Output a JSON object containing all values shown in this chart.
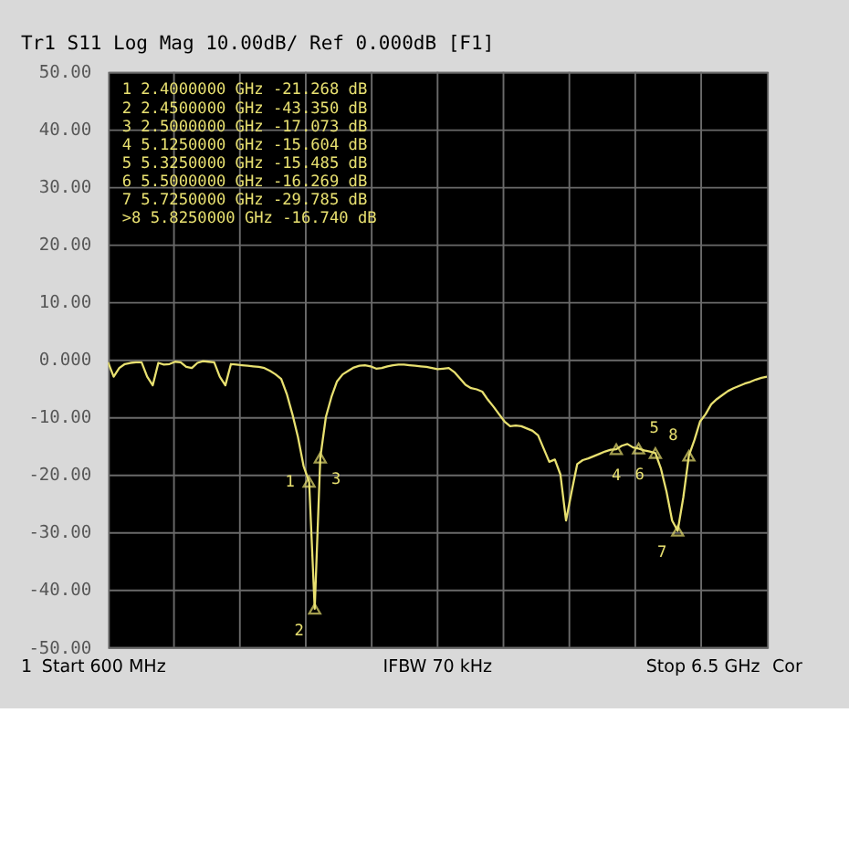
{
  "chart_data": {
    "type": "line",
    "title": "Tr1  S11 Log Mag 10.00dB/ Ref 0.000dB [F1]",
    "categories": [
      null,
      null,
      null,
      null,
      null,
      null,
      null,
      null,
      null,
      null,
      null,
      null,
      null,
      null,
      null,
      null,
      null,
      null,
      null,
      null,
      null,
      null,
      null,
      null,
      null,
      null,
      null,
      null,
      null,
      null,
      null,
      null,
      null,
      null,
      null,
      null,
      null,
      null,
      null,
      null,
      null,
      null,
      null,
      null,
      null,
      null,
      null,
      null,
      null,
      null,
      null,
      null,
      null,
      null,
      null,
      null,
      null,
      null,
      null,
      null,
      null,
      null,
      null,
      null,
      null,
      null,
      null,
      null,
      null,
      null,
      null,
      null,
      null,
      null,
      null,
      null,
      null,
      null,
      null,
      null,
      null,
      null,
      null,
      null,
      null,
      null,
      null,
      null,
      null,
      null,
      null,
      null,
      null,
      null,
      null,
      null,
      null,
      null,
      null,
      null,
      null,
      null,
      null,
      null,
      null,
      null,
      null,
      null,
      null,
      null,
      null,
      null,
      null,
      null,
      null,
      null,
      null,
      null,
      null
    ],
    "ylim": [
      -50,
      50
    ],
    "yticks": [
      {
        "value": 50,
        "label": "50.00"
      },
      {
        "value": 40,
        "label": "40.00"
      },
      {
        "value": 30,
        "label": "30.00"
      },
      {
        "value": 20,
        "label": "20.00"
      },
      {
        "value": 10,
        "label": "10.00"
      },
      {
        "value": 0,
        "label": "0.000"
      },
      {
        "value": -10,
        "label": "-10.00"
      },
      {
        "value": -20,
        "label": "-20.00"
      },
      {
        "value": -30,
        "label": "-30.00"
      },
      {
        "value": -40,
        "label": "-40.00"
      },
      {
        "value": -50,
        "label": "-50.00"
      }
    ],
    "grid": true,
    "tick_labels": "y",
    "series": [
      {
        "color": "#e8e070",
        "values": [
          -0.5,
          -3.0,
          -1.5,
          -0.8,
          -0.6,
          -0.5,
          -0.5,
          -3.0,
          -4.5,
          -0.6,
          -0.9,
          -0.8,
          -0.4,
          -0.5,
          -1.3,
          -1.5,
          -0.6,
          -0.3,
          -0.4,
          -0.5,
          -3.0,
          -4.5,
          -0.8,
          -0.9,
          -1.0,
          -1.1,
          -1.2,
          -1.3,
          -1.5,
          -2.0,
          -2.6,
          -3.4,
          -6,
          -9.5,
          -13.5,
          -18.5,
          -21.268,
          -43.35,
          -17.073,
          -10,
          -6.5,
          -3.8,
          -2.6,
          -2.0,
          -1.4,
          -1.1,
          -1.0,
          -1.2,
          -1.6,
          -1.5,
          -1.2,
          -1.0,
          -0.9,
          -0.9,
          -1.0,
          -1.1,
          -1.2,
          -1.3,
          -1.5,
          -1.7,
          -1.6,
          -1.5,
          -2.2,
          -3.3,
          -4.4,
          -5.0,
          -5.2,
          -5.6,
          -7.0,
          -8.2,
          -9.5,
          -10.8,
          -11.6,
          -11.5,
          -11.6,
          -12.0,
          -12.4,
          -13.2,
          -15.5,
          -17.8,
          -17.4,
          -20,
          -28,
          -23,
          -18.2,
          -17.5,
          -17.2,
          -16.8,
          -16.4,
          -16.0,
          -15.7,
          -15.604,
          -15.0,
          -14.7,
          -15.3,
          -15.485,
          -15.8,
          -16.0,
          -16.269,
          -19,
          -23,
          -28,
          -29.785,
          -24,
          -16.74,
          -14,
          -10.8,
          -9.5,
          -7.8,
          -6.9,
          -6.2,
          -5.5,
          -5.0,
          -4.6,
          -4.2,
          -3.9,
          -3.5,
          -3.2,
          -3.0
        ]
      },
      {
        "type": "scatter",
        "marker": "triangle",
        "color": "#e8e070",
        "values": [
          null,
          null,
          null,
          null,
          null,
          null,
          null,
          null,
          null,
          null,
          null,
          null,
          null,
          null,
          null,
          null,
          null,
          null,
          null,
          null,
          null,
          null,
          null,
          null,
          null,
          null,
          null,
          null,
          null,
          null,
          null,
          null,
          null,
          null,
          null,
          null,
          -21.268,
          -43.35,
          -17.073,
          null,
          null,
          null,
          null,
          null,
          null,
          null,
          null,
          null,
          null,
          null,
          null,
          null,
          null,
          null,
          null,
          null,
          null,
          null,
          null,
          null,
          null,
          null,
          null,
          null,
          null,
          null,
          null,
          null,
          null,
          null,
          null,
          null,
          null,
          null,
          null,
          null,
          null,
          null,
          null,
          null,
          null,
          null,
          null,
          null,
          null,
          null,
          null,
          null,
          null,
          null,
          null,
          -15.604,
          null,
          null,
          null,
          -15.485,
          null,
          null,
          -16.269,
          null,
          null,
          null,
          -29.785,
          null,
          -16.74,
          null,
          null,
          null,
          null,
          null,
          null,
          null,
          null,
          null,
          null,
          null,
          null,
          null,
          null
        ]
      }
    ],
    "annotations": [
      "1   2.4000000 GHz  -21.268 dB",
      "2   2.4500000 GHz  -43.350 dB",
      "3   2.5000000 GHz  -17.073 dB",
      "4   5.1250000 GHz  -15.604 dB",
      "5   5.3250000 GHz  -15.485 dB",
      "6   5.5000000 GHz  -16.269 dB",
      "7   5.7250000 GHz  -29.785 dB",
      ">8  5.8250000 GHz  -16.740 dB",
      "1",
      "2",
      "3",
      "4",
      "5",
      "6",
      "7",
      "8",
      "1",
      "Start 600 MHz",
      "IFBW 70 kHz",
      "Stop 6.5 GHz",
      "Cor"
    ]
  }
}
